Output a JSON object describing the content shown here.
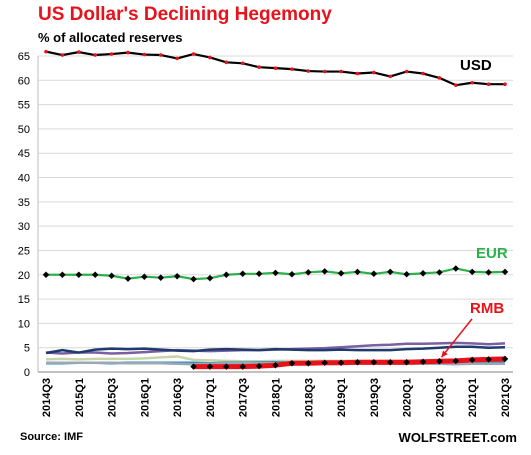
{
  "chart_data": {
    "type": "line",
    "title": "US Dollar's Declining Hegemony",
    "ylabel": "% of allocated reserves",
    "ylim": [
      0,
      65
    ],
    "yticks": [
      0,
      5,
      10,
      15,
      20,
      25,
      30,
      35,
      40,
      45,
      50,
      55,
      60,
      65
    ],
    "grid": true,
    "x": [
      "2014Q3",
      "2014Q4",
      "2015Q1",
      "2015Q2",
      "2015Q3",
      "2015Q4",
      "2016Q1",
      "2016Q2",
      "2016Q3",
      "2016Q4",
      "2017Q1",
      "2017Q2",
      "2017Q3",
      "2017Q4",
      "2018Q1",
      "2018Q2",
      "2018Q3",
      "2018Q4",
      "2019Q1",
      "2019Q2",
      "2019Q3",
      "2019Q4",
      "2020Q1",
      "2020Q2",
      "2020Q3",
      "2020Q4",
      "2021Q1",
      "2021Q2",
      "2021Q3"
    ],
    "xticklabels": [
      "2014Q3",
      "2015Q1",
      "2015Q3",
      "2016Q1",
      "2016Q3",
      "2017Q1",
      "2017Q3",
      "2018Q1",
      "2018Q3",
      "2019Q1",
      "2019Q3",
      "2020Q1",
      "2020Q3",
      "2021Q1",
      "2021Q3"
    ],
    "series": [
      {
        "name": "USD",
        "color": "#000000",
        "marker_color": "#e8121a",
        "marker": "dot",
        "values": [
          65.9,
          65.2,
          65.8,
          65.2,
          65.4,
          65.7,
          65.3,
          65.2,
          64.5,
          65.4,
          64.7,
          63.7,
          63.5,
          62.7,
          62.5,
          62.3,
          61.9,
          61.8,
          61.8,
          61.4,
          61.6,
          60.8,
          61.8,
          61.4,
          60.5,
          59.0,
          59.5,
          59.2,
          59.2
        ]
      },
      {
        "name": "EUR",
        "color": "#2bb04a",
        "marker_color": "#000000",
        "marker": "diamond",
        "values": [
          20.0,
          20.0,
          20.0,
          20.0,
          19.8,
          19.2,
          19.6,
          19.4,
          19.7,
          19.1,
          19.3,
          20.0,
          20.2,
          20.2,
          20.4,
          20.1,
          20.5,
          20.7,
          20.3,
          20.6,
          20.2,
          20.6,
          20.1,
          20.3,
          20.5,
          21.3,
          20.6,
          20.5,
          20.6
        ]
      },
      {
        "name": "RMB",
        "color": "#e8121a",
        "marker_color": "#000000",
        "marker": "diamond",
        "values": [
          null,
          null,
          null,
          null,
          null,
          null,
          null,
          null,
          null,
          1.1,
          1.1,
          1.1,
          1.1,
          1.2,
          1.4,
          1.8,
          1.8,
          1.9,
          1.9,
          2.0,
          2.0,
          2.0,
          2.0,
          2.1,
          2.2,
          2.3,
          2.5,
          2.6,
          2.7
        ]
      },
      {
        "name": "",
        "color": "#7a5fa2",
        "marker": "none",
        "values": [
          4.0,
          3.8,
          4.0,
          4.0,
          3.8,
          3.9,
          4.1,
          4.3,
          4.5,
          4.4,
          4.3,
          4.4,
          4.5,
          4.5,
          4.6,
          4.7,
          4.8,
          4.9,
          5.1,
          5.3,
          5.5,
          5.6,
          5.8,
          5.8,
          5.9,
          6.0,
          5.9,
          5.7,
          5.9
        ]
      },
      {
        "name": "",
        "color": "#1f3a6d",
        "marker": "none",
        "values": [
          3.9,
          4.5,
          4.0,
          4.6,
          4.8,
          4.7,
          4.8,
          4.6,
          4.4,
          4.3,
          4.6,
          4.7,
          4.6,
          4.5,
          4.7,
          4.6,
          4.5,
          4.5,
          4.6,
          4.5,
          4.5,
          4.5,
          4.7,
          4.8,
          5.0,
          5.2,
          5.2,
          5.0,
          5.1
        ]
      },
      {
        "name": "",
        "color": "#c9d3a8",
        "marker": "none",
        "values": [
          2.6,
          2.7,
          2.6,
          2.7,
          2.7,
          2.7,
          2.8,
          3.0,
          3.2,
          2.5,
          2.4,
          2.3,
          2.2,
          2.2,
          2.3,
          2.3,
          2.3,
          2.3,
          2.3,
          2.3,
          2.3,
          2.3,
          2.3,
          2.3,
          2.3,
          2.3,
          2.3,
          2.2,
          2.3
        ]
      },
      {
        "name": "",
        "color": "#2a8fbf",
        "marker": "none",
        "values": [
          1.8,
          1.8,
          1.9,
          1.9,
          1.8,
          1.9,
          1.9,
          1.9,
          1.9,
          1.9,
          1.8,
          1.9,
          1.9,
          2.0,
          2.0,
          1.9,
          1.9,
          1.8,
          1.9,
          1.9,
          1.9,
          1.9,
          1.9,
          1.9,
          2.0,
          2.0,
          2.2,
          2.1,
          2.2
        ]
      },
      {
        "name": "",
        "color": "#9aa7b5",
        "marker": "none",
        "values": [
          1.9,
          1.9,
          1.9,
          1.9,
          1.9,
          1.8,
          1.8,
          1.8,
          1.7,
          1.6,
          1.7,
          1.8,
          1.8,
          1.9,
          1.8,
          1.7,
          1.7,
          1.7,
          1.7,
          1.7,
          1.7,
          1.7,
          1.7,
          1.7,
          1.7,
          1.6,
          1.7,
          1.7,
          1.7
        ]
      }
    ],
    "annotations": [
      {
        "text": "USD",
        "color": "#000000",
        "series": "USD"
      },
      {
        "text": "EUR",
        "color": "#2bb04a",
        "series": "EUR"
      },
      {
        "text": "RMB",
        "color": "#e8121a",
        "series": "RMB",
        "arrow": true
      }
    ]
  },
  "footer": {
    "source": "Source: IMF",
    "brand": "WOLFSTREET.com"
  }
}
